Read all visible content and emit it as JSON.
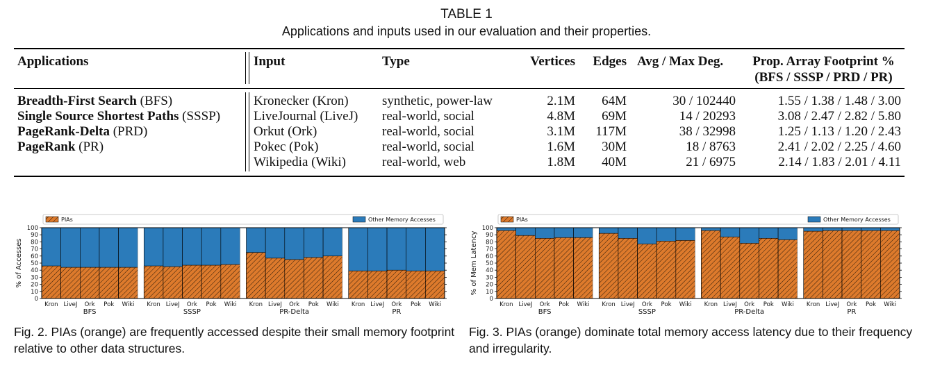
{
  "table": {
    "caption_title": "TABLE 1",
    "caption_text": "Applications and inputs used in our evaluation and their properties.",
    "headers": {
      "applications": "Applications",
      "input": "Input",
      "type": "Type",
      "vertices": "Vertices",
      "edges": "Edges",
      "degree": "Avg / Max Deg.",
      "footprint_l1": "Prop. Array Footprint %",
      "footprint_l2": "(BFS / SSSP / PRD / PR)"
    },
    "applications": [
      {
        "name": "Breadth-First Search",
        "abbr": "(BFS)"
      },
      {
        "name": "Single Source Shortest Paths",
        "abbr": "(SSSP)"
      },
      {
        "name": "PageRank-Delta",
        "abbr": "(PRD)"
      },
      {
        "name": "PageRank",
        "abbr": "(PR)"
      }
    ],
    "rows": [
      {
        "input": "Kronecker (Kron)",
        "type": "synthetic, power-law",
        "vertices": "2.1M",
        "edges": "64M",
        "degree": "30 / 102440",
        "footprint": "1.55 / 1.38 / 1.48 / 3.00"
      },
      {
        "input": "LiveJournal (LiveJ)",
        "type": "real-world, social",
        "vertices": "4.8M",
        "edges": "69M",
        "degree": "14 / 20293",
        "footprint": "3.08 / 2.47 / 2.82 / 5.80"
      },
      {
        "input": "Orkut (Ork)",
        "type": "real-world, social",
        "vertices": "3.1M",
        "edges": "117M",
        "degree": "38 / 32998",
        "footprint": "1.25 / 1.13 / 1.20 / 2.43"
      },
      {
        "input": "Pokec (Pok)",
        "type": "real-world, social",
        "vertices": "1.6M",
        "edges": "30M",
        "degree": "18 / 8763",
        "footprint": "2.41 / 2.02 / 2.25 / 4.60"
      },
      {
        "input": "Wikipedia (Wiki)",
        "type": "real-world, web",
        "vertices": "1.8M",
        "edges": "40M",
        "degree": "21 / 6975",
        "footprint": "2.14 / 1.83 / 2.01 / 4.11"
      }
    ]
  },
  "colors": {
    "pia": "#dd7a2c",
    "other": "#2b7bba"
  },
  "fig2_caption": "Fig. 2. PIAs (orange) are frequently accessed despite their small memory footprint relative to other data structures.",
  "fig3_caption": "Fig. 3. PIAs (orange) dominate total memory access latency due to their frequency and irregularity.",
  "chart_data": [
    {
      "type": "bar",
      "stacked": true,
      "ylabel": "% of Accesses",
      "ylim": [
        0,
        100
      ],
      "yticks": [
        0,
        10,
        20,
        30,
        40,
        50,
        60,
        70,
        80,
        90,
        100
      ],
      "legend": [
        "PIAs",
        "Other Memory Accesses"
      ],
      "legend_placement": "top",
      "groups": [
        "BFS",
        "SSSP",
        "PR-Delta",
        "PR"
      ],
      "categories": [
        "Kron",
        "LiveJ",
        "Ork",
        "Pok",
        "Wiki"
      ],
      "series": [
        {
          "name": "PIAs",
          "values": [
            [
              46,
              44,
              44,
              44,
              44
            ],
            [
              46,
              45,
              47,
              47,
              48
            ],
            [
              65,
              57,
              55,
              58,
              60
            ],
            [
              39,
              39,
              40,
              39,
              39
            ]
          ]
        },
        {
          "name": "Other Memory Accesses",
          "values": [
            [
              54,
              56,
              56,
              56,
              56
            ],
            [
              54,
              55,
              53,
              53,
              52
            ],
            [
              35,
              43,
              45,
              42,
              40
            ],
            [
              61,
              61,
              60,
              61,
              61
            ]
          ]
        }
      ]
    },
    {
      "type": "bar",
      "stacked": true,
      "ylabel": "% of Mem Latency",
      "ylim": [
        0,
        100
      ],
      "yticks": [
        0,
        10,
        20,
        30,
        40,
        50,
        60,
        70,
        80,
        90,
        100
      ],
      "legend": [
        "PIAs",
        "Other Memory Accesses"
      ],
      "legend_placement": "top",
      "groups": [
        "BFS",
        "SSSP",
        "PR-Delta",
        "PR"
      ],
      "categories": [
        "Kron",
        "LiveJ",
        "Ork",
        "Pok",
        "Wiki"
      ],
      "series": [
        {
          "name": "PIAs",
          "values": [
            [
              96,
              89,
              85,
              86,
              86
            ],
            [
              92,
              85,
              77,
              81,
              82
            ],
            [
              96,
              87,
              78,
              85,
              83
            ],
            [
              95,
              96,
              96,
              96,
              96
            ]
          ]
        },
        {
          "name": "Other Memory Accesses",
          "values": [
            [
              4,
              11,
              15,
              14,
              14
            ],
            [
              8,
              15,
              23,
              19,
              18
            ],
            [
              4,
              13,
              22,
              15,
              17
            ],
            [
              5,
              4,
              4,
              4,
              4
            ]
          ]
        }
      ]
    }
  ]
}
